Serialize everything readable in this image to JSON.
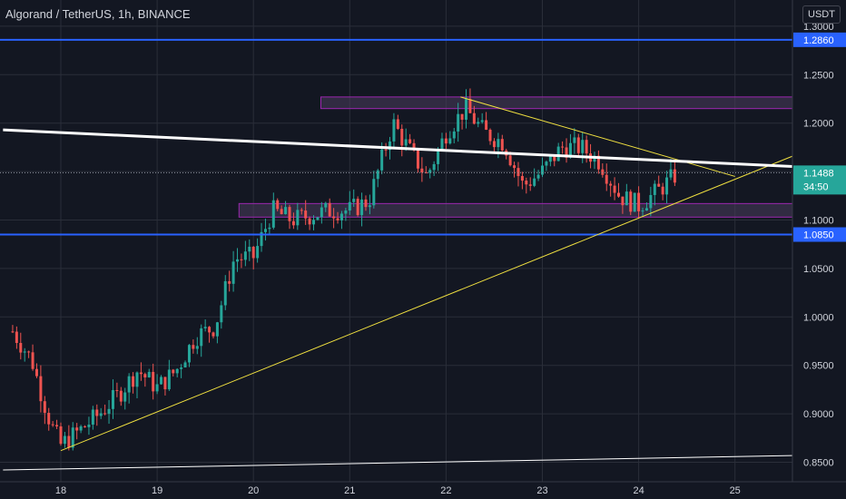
{
  "header": {
    "title": "Algorand / TetherUS, 1h, BINANCE",
    "currency": "USDT"
  },
  "price_axis": {
    "tick_labels": [
      "0.8500",
      "0.9000",
      "0.9500",
      "1.0000",
      "1.0500",
      "1.1000",
      "1.1500",
      "1.2000",
      "1.2500",
      "1.3000"
    ]
  },
  "time_axis": {
    "tick_labels": [
      "18",
      "19",
      "20",
      "21",
      "22",
      "23",
      "24",
      "25"
    ]
  },
  "badges": {
    "level_upper": "1.2860",
    "level_lower": "1.0850",
    "last_price": "1.1488",
    "countdown": "34:50"
  },
  "colors": {
    "background": "#131722",
    "grid": "#2a2e39",
    "candle_up": "#26a69a",
    "candle_down": "#ef5350",
    "level_line": "#2962ff",
    "trendline_yellow": "#f0e040",
    "trendline_white": "#ffffff",
    "zone_border": "#9c27b0",
    "zone_fill": "#4a3d5c"
  },
  "chart_data": {
    "type": "candlestick",
    "symbol": "Algorand / TetherUS",
    "interval": "1h",
    "exchange": "BINANCE",
    "x_range": [
      "17.4",
      "25.7"
    ],
    "ylim": [
      0.845,
      1.305
    ],
    "last_price": 1.1488,
    "horizontal_levels": [
      1.286,
      1.085
    ],
    "zones": [
      {
        "from": 1.215,
        "to": 1.227,
        "start_x": 20.7,
        "end_x": 25.65
      },
      {
        "from": 1.103,
        "to": 1.117,
        "start_x": 19.85,
        "end_x": 25.65
      }
    ],
    "trendlines": [
      {
        "name": "ascending support",
        "color": "yellow",
        "points": [
          [
            18.0,
            0.862
          ],
          [
            25.65,
            1.168
          ]
        ]
      },
      {
        "name": "descending resistance",
        "color": "yellow",
        "points": [
          [
            22.15,
            1.227
          ],
          [
            25.0,
            1.145
          ]
        ]
      },
      {
        "name": "long downtrend",
        "color": "white",
        "points": [
          [
            17.4,
            1.193
          ],
          [
            25.65,
            1.155
          ]
        ]
      },
      {
        "name": "base line",
        "color": "white",
        "points": [
          [
            17.4,
            0.842
          ],
          [
            25.65,
            0.857
          ]
        ]
      }
    ],
    "candles_sample": [
      {
        "x": 17.5,
        "close": 0.985
      },
      {
        "x": 17.7,
        "close": 0.955
      },
      {
        "x": 17.8,
        "close": 0.92
      },
      {
        "x": 17.9,
        "close": 0.888
      },
      {
        "x": 18.0,
        "close": 0.868
      },
      {
        "x": 18.2,
        "close": 0.883
      },
      {
        "x": 18.4,
        "close": 0.9
      },
      {
        "x": 18.6,
        "close": 0.92
      },
      {
        "x": 18.8,
        "close": 0.945
      },
      {
        "x": 19.0,
        "close": 0.927
      },
      {
        "x": 19.2,
        "close": 0.945
      },
      {
        "x": 19.4,
        "close": 0.98
      },
      {
        "x": 19.6,
        "close": 0.99
      },
      {
        "x": 19.8,
        "close": 1.06
      },
      {
        "x": 20.0,
        "close": 1.062
      },
      {
        "x": 20.2,
        "close": 1.11
      },
      {
        "x": 20.4,
        "close": 1.1
      },
      {
        "x": 20.6,
        "close": 1.105
      },
      {
        "x": 20.8,
        "close": 1.11
      },
      {
        "x": 21.0,
        "close": 1.11
      },
      {
        "x": 21.2,
        "close": 1.12
      },
      {
        "x": 21.45,
        "close": 1.2
      },
      {
        "x": 21.6,
        "close": 1.175
      },
      {
        "x": 21.8,
        "close": 1.145
      },
      {
        "x": 22.0,
        "close": 1.19
      },
      {
        "x": 22.2,
        "close": 1.215
      },
      {
        "x": 22.4,
        "close": 1.19
      },
      {
        "x": 22.6,
        "close": 1.18
      },
      {
        "x": 22.8,
        "close": 1.135
      },
      {
        "x": 23.0,
        "close": 1.15
      },
      {
        "x": 23.2,
        "close": 1.175
      },
      {
        "x": 23.4,
        "close": 1.175
      },
      {
        "x": 23.6,
        "close": 1.16
      },
      {
        "x": 23.8,
        "close": 1.125
      },
      {
        "x": 24.0,
        "close": 1.115
      },
      {
        "x": 24.2,
        "close": 1.13
      },
      {
        "x": 24.4,
        "close": 1.148
      }
    ]
  }
}
